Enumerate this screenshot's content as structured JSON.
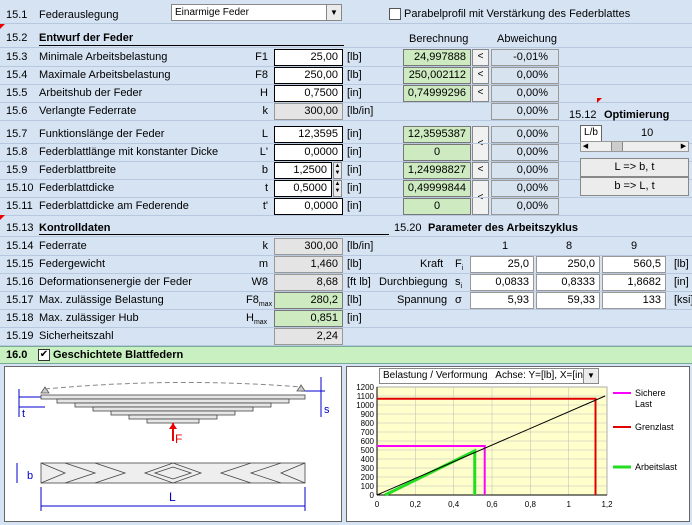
{
  "top": {
    "num": "15.1",
    "label": "Federauslegung",
    "select_value": "Einarmige Feder",
    "checkbox_label": "Parabelprofil mit Verstärkung des Federblattes"
  },
  "design": {
    "num": "15.2",
    "title": "Entwurf der Feder",
    "col_calc": "Berechnung",
    "col_dev": "Abweichung",
    "rows": [
      {
        "num": "15.3",
        "label": "Minimale Arbeitsbelastung",
        "sym": "F1",
        "value": "25,00",
        "unit": "[lb]",
        "calc": "24,997888",
        "lt": "<",
        "dev": "-0,01%"
      },
      {
        "num": "15.4",
        "label": "Maximale Arbeitsbelastung",
        "sym": "F8",
        "value": "250,00",
        "unit": "[lb]",
        "calc": "250,002112",
        "lt": "<",
        "dev": "0,00%"
      },
      {
        "num": "15.5",
        "label": "Arbeitshub der Feder",
        "sym": "H",
        "value": "0,7500",
        "unit": "[in]",
        "calc": "0,74999296",
        "lt": "<",
        "dev": "0,00%"
      },
      {
        "num": "15.6",
        "label": "Verlangte Federrate",
        "sym": "k",
        "value": "300,00",
        "unit": "[lb/in]",
        "calc": "",
        "lt": "",
        "dev": "0,00%"
      },
      {
        "num": "15.7",
        "label": "Funktionslänge der Feder",
        "sym": "L",
        "value": "12,3595",
        "unit": "[in]",
        "calc": "12,3595387",
        "lt": "<",
        "dev": "0,00%"
      },
      {
        "num": "15.8",
        "label": "Federblattlänge mit konstanter Dicke",
        "sym": "L'",
        "value": "0,0000",
        "unit": "[in]",
        "calc": "0",
        "lt": "",
        "dev": "0,00%"
      },
      {
        "num": "15.9",
        "label": "Federblattbreite",
        "sym": "b",
        "value": "1,2500",
        "unit": "[in]",
        "calc": "1,24998827",
        "lt": "<",
        "dev": "0,00%"
      },
      {
        "num": "15.10",
        "label": "Federblattdicke",
        "sym": "t",
        "value": "0,5000",
        "unit": "[in]",
        "calc": "0,49999844",
        "lt": "<",
        "dev": "0,00%"
      },
      {
        "num": "15.11",
        "label": "Federblattdicke am Federende",
        "sym": "t'",
        "value": "0,0000",
        "unit": "[in]",
        "calc": "0",
        "lt": "",
        "dev": "0,00%"
      }
    ]
  },
  "optim": {
    "num": "15.12",
    "title": "Optimierung",
    "label": "L/b",
    "value": "10",
    "btn1": "L => b, t",
    "btn2": "b => L, t"
  },
  "control": {
    "num": "15.13",
    "title": "Kontrolldaten",
    "rows": [
      {
        "num": "15.14",
        "label": "Federrate",
        "sym": "k",
        "value": "300,00",
        "unit": "[lb/in]"
      },
      {
        "num": "15.15",
        "label": "Federgewicht",
        "sym": "m",
        "value": "1,460",
        "unit": "[lb]"
      },
      {
        "num": "15.16",
        "label": "Deformationsenergie der Feder",
        "sym": "W8",
        "value": "8,68",
        "unit": "[ft lb]"
      },
      {
        "num": "15.17",
        "label": "Max. zulässige Belastung",
        "sym": "F8",
        "sub": "max",
        "value": "280,2",
        "unit": "[lb]"
      },
      {
        "num": "15.18",
        "label": "Max. zulässiger Hub",
        "sym": "H",
        "sub": "max",
        "value": "0,851",
        "unit": "[in]"
      },
      {
        "num": "15.19",
        "label": "Sicherheitszahl",
        "sym": "",
        "value": "2,24",
        "unit": ""
      }
    ]
  },
  "cycle": {
    "num": "15.20",
    "title": "Parameter des Arbeitszyklus",
    "cols": [
      "1",
      "8",
      "9"
    ],
    "rows": [
      {
        "label": "Kraft",
        "sym": "F",
        "vals": [
          "25,0",
          "250,0",
          "560,5"
        ],
        "unit": "[lb]"
      },
      {
        "label": "Durchbiegung",
        "sym": "s",
        "vals": [
          "0,0833",
          "0,8333",
          "1,8682"
        ],
        "unit": "[in]"
      },
      {
        "label": "Spannung",
        "sym": "σ",
        "vals": [
          "5,93",
          "59,33",
          "133"
        ],
        "unit": "[ksi]"
      }
    ]
  },
  "section16": {
    "num": "16.0",
    "title": "Geschichtete Blattfedern"
  },
  "diagram": {
    "t": "t",
    "s": "s",
    "F": "F",
    "b": "b",
    "L": "L"
  },
  "chart": {
    "select_value": "Belastung / Verformung   Achse: Y=[lb], X=[in]"
  },
  "chart_data": {
    "type": "line",
    "xlim": [
      0,
      1.2
    ],
    "ylim": [
      0,
      1200
    ],
    "xticks": [
      "0",
      "0,2",
      "0,4",
      "0,6",
      "0,8",
      "1",
      "1,2"
    ],
    "yticks": [
      "0",
      "100",
      "200",
      "300",
      "400",
      "500",
      "600",
      "700",
      "800",
      "900",
      "1000",
      "1100",
      "1200"
    ],
    "series": [
      {
        "name": "Sichere Last",
        "color": "#ff00ff",
        "x": [
          0,
          0.562,
          0.562
        ],
        "y": [
          545,
          545,
          0
        ]
      },
      {
        "name": "Grenzlast",
        "color": "#e00000",
        "x": [
          0,
          1.14,
          1.14
        ],
        "y": [
          1070,
          1070,
          0
        ]
      },
      {
        "name": "Arbeitslast",
        "color": "#22dd22",
        "x": [
          0.042,
          0.51,
          0.51
        ],
        "y": [
          0,
          490,
          0
        ]
      },
      {
        "name": "",
        "color": "#000000",
        "x": [
          0,
          1.19
        ],
        "y": [
          0,
          1100
        ]
      }
    ],
    "legend": [
      "Sichere Last",
      "Grenzlast",
      "Arbeitslast"
    ]
  }
}
